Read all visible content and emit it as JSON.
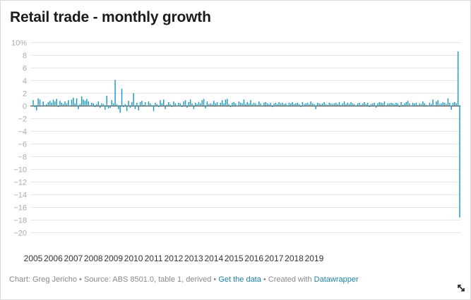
{
  "chart_data": {
    "type": "bar",
    "title": "Retail trade - monthly growth",
    "xlabel": "",
    "ylabel": "",
    "y_unit_suffix": "%",
    "ylim": [
      -20,
      10
    ],
    "yticks": [
      10,
      8,
      6,
      4,
      2,
      0,
      -2,
      -4,
      -6,
      -8,
      -10,
      -12,
      -14,
      -16,
      -18,
      -20
    ],
    "x_start_year": 2005,
    "x_tick_labels": [
      "2005",
      "2006",
      "2007",
      "2008",
      "2009",
      "2010",
      "2011",
      "2012",
      "2013",
      "2014",
      "2015",
      "2016",
      "2017",
      "2018",
      "2019"
    ],
    "grid": true,
    "bar_color": "#1d9ac0",
    "values": [
      0.8,
      -0.3,
      -0.8,
      1.1,
      0.9,
      -0.2,
      0.6,
      -0.1,
      0.2,
      0.5,
      0.7,
      0.4,
      0.9,
      0.6,
      1.0,
      -0.3,
      0.7,
      0.4,
      0.2,
      0.6,
      0.3,
      0.8,
      -0.2,
      0.9,
      1.2,
      0.3,
      1.1,
      -0.6,
      0.2,
      1.4,
      0.9,
      0.7,
      1.0,
      0.6,
      -0.2,
      0.4,
      0.3,
      -0.3,
      0.2,
      0.6,
      -0.4,
      0.3,
      0.2,
      -0.7,
      1.5,
      -0.5,
      -0.4,
      0.8,
      0.3,
      4.0,
      0.2,
      -0.6,
      -1.2,
      2.6,
      -0.3,
      0.2,
      -0.9,
      0.7,
      -0.4,
      0.5,
      1.9,
      -0.6,
      0.4,
      -0.8,
      0.5,
      0.7,
      0.1,
      0.5,
      -0.2,
      0.6,
      0.3,
      -0.2,
      -0.9,
      0.4,
      0.2,
      -0.3,
      0.8,
      0.3,
      0.9,
      -0.6,
      0.1,
      0.5,
      0.2,
      -0.3,
      0.6,
      0.3,
      -0.2,
      0.4,
      0.3,
      -0.3,
      0.6,
      0.8,
      -0.4,
      0.5,
      0.9,
      0.3,
      -0.6,
      0.4,
      0.2,
      0.5,
      0.3,
      0.8,
      1.0,
      -0.5,
      0.6,
      0.2,
      0.3,
      0.2,
      0.7,
      0.3,
      0.5,
      -0.1,
      0.4,
      0.8,
      0.3,
      0.9,
      1.0,
      0.2,
      -0.3,
      0.4,
      0.5,
      0.3,
      -0.2,
      0.6,
      0.4,
      0.3,
      0.9,
      0.2,
      0.5,
      0.3,
      0.8,
      0.2,
      0.4,
      0.3,
      0.1,
      0.6,
      0.3,
      -0.2,
      0.4,
      0.5,
      0.3,
      0.2,
      0.4,
      -0.3,
      0.3,
      0.4,
      0.2,
      0.5,
      0.3,
      0.4,
      0.2,
      0.3,
      -0.2,
      0.4,
      0.3,
      0.5,
      0.2,
      0.3,
      0.4,
      0.2,
      -0.3,
      0.5,
      0.2,
      0.3,
      0.4,
      0.2,
      0.6,
      0.3,
      0.2,
      -0.6,
      0.4,
      0.3,
      0.2,
      0.3,
      0.5,
      0.2,
      0.1,
      0.4,
      0.3,
      0.2,
      0.3,
      0.4,
      0.2,
      0.5,
      0.1,
      0.3,
      0.6,
      0.2,
      0.4,
      0.2,
      0.5,
      0.3,
      0.2,
      -0.2,
      0.3,
      0.4,
      0.1,
      0.3,
      0.5,
      0.2,
      0.4,
      -0.3,
      0.2,
      0.3,
      0.4,
      -0.4,
      0.3,
      0.5,
      0.4,
      0.3,
      0.6,
      -0.1,
      0.3,
      0.3,
      0.4,
      0.3,
      0.2,
      0.4,
      0.3,
      -0.3,
      0.5,
      0.1,
      0.3,
      0.5,
      0.7,
      0.3,
      -0.2,
      0.4,
      0.3,
      0.4,
      -0.1,
      0.3,
      0.2,
      0.6,
      0.3,
      0.1,
      -0.2,
      0.4,
      0.2,
      0.9,
      -0.1,
      0.6,
      0.8,
      0.2,
      0.3,
      0.5,
      0.4,
      0.2,
      1.1,
      0.4,
      -0.7,
      0.4,
      0.5,
      0.3,
      8.5,
      -17.7
    ]
  },
  "footer": {
    "prefix": "Chart: Greg Jericho • Source: ABS 8501.0, table 1, derived • ",
    "data_link": "Get the data",
    "middle": " • Created with ",
    "tool_link": "Datawrapper"
  }
}
